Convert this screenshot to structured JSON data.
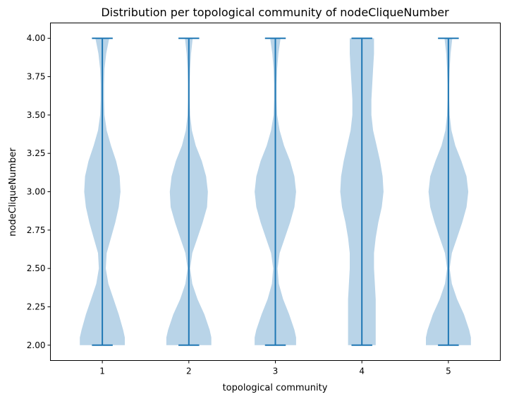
{
  "chart_data": {
    "type": "violin",
    "title": "Distribution per topological community of nodeCliqueNumber",
    "xlabel": "topological community",
    "ylabel": "nodeCliqueNumber",
    "categories": [
      "1",
      "2",
      "3",
      "4",
      "5"
    ],
    "ylim": [
      1.9,
      4.1
    ],
    "yticks": [
      "2.00",
      "2.25",
      "2.50",
      "2.75",
      "3.00",
      "3.25",
      "3.50",
      "3.75",
      "4.00"
    ],
    "grid": false,
    "colors": {
      "body": "#b9d4e8",
      "line": "#1f77b4"
    },
    "violins": [
      {
        "category": "1",
        "min": 2.0,
        "max": 4.0,
        "profile": {
          "y": [
            2.0,
            2.05,
            2.1,
            2.2,
            2.3,
            2.4,
            2.5,
            2.6,
            2.7,
            2.8,
            2.9,
            3.0,
            3.1,
            3.2,
            3.3,
            3.4,
            3.5,
            3.6,
            3.7,
            3.8,
            3.9,
            4.0
          ],
          "halfwidth": [
            0.26,
            0.26,
            0.24,
            0.19,
            0.13,
            0.07,
            0.04,
            0.05,
            0.1,
            0.15,
            0.19,
            0.21,
            0.2,
            0.16,
            0.1,
            0.05,
            0.025,
            0.02,
            0.02,
            0.025,
            0.045,
            0.08
          ]
        }
      },
      {
        "category": "2",
        "min": 2.0,
        "max": 4.0,
        "profile": {
          "y": [
            2.0,
            2.05,
            2.1,
            2.2,
            2.3,
            2.4,
            2.5,
            2.6,
            2.7,
            2.8,
            2.9,
            3.0,
            3.1,
            3.2,
            3.3,
            3.4,
            3.5,
            3.6,
            3.7,
            3.8,
            3.9,
            4.0
          ],
          "halfwidth": [
            0.26,
            0.26,
            0.24,
            0.18,
            0.1,
            0.04,
            0.015,
            0.04,
            0.1,
            0.16,
            0.21,
            0.22,
            0.2,
            0.15,
            0.08,
            0.035,
            0.015,
            0.01,
            0.01,
            0.015,
            0.025,
            0.045
          ]
        }
      },
      {
        "category": "3",
        "min": 2.0,
        "max": 4.0,
        "profile": {
          "y": [
            2.0,
            2.05,
            2.1,
            2.2,
            2.3,
            2.4,
            2.5,
            2.6,
            2.7,
            2.8,
            2.9,
            3.0,
            3.1,
            3.2,
            3.3,
            3.4,
            3.5,
            3.6,
            3.7,
            3.8,
            3.9,
            4.0
          ],
          "halfwidth": [
            0.24,
            0.24,
            0.22,
            0.16,
            0.09,
            0.04,
            0.025,
            0.05,
            0.11,
            0.17,
            0.22,
            0.24,
            0.22,
            0.17,
            0.1,
            0.05,
            0.02,
            0.015,
            0.015,
            0.02,
            0.035,
            0.06
          ]
        }
      },
      {
        "category": "4",
        "min": 2.0,
        "max": 4.0,
        "profile": {
          "y": [
            2.0,
            2.05,
            2.1,
            2.2,
            2.3,
            2.4,
            2.5,
            2.6,
            2.7,
            2.8,
            2.9,
            3.0,
            3.1,
            3.2,
            3.3,
            3.4,
            3.5,
            3.6,
            3.7,
            3.8,
            3.9,
            4.0
          ],
          "halfwidth": [
            0.16,
            0.16,
            0.16,
            0.16,
            0.16,
            0.15,
            0.14,
            0.14,
            0.16,
            0.19,
            0.23,
            0.25,
            0.24,
            0.21,
            0.17,
            0.13,
            0.11,
            0.11,
            0.12,
            0.13,
            0.14,
            0.14
          ]
        }
      },
      {
        "category": "5",
        "min": 2.0,
        "max": 4.0,
        "profile": {
          "y": [
            2.0,
            2.05,
            2.1,
            2.2,
            2.3,
            2.4,
            2.5,
            2.6,
            2.7,
            2.8,
            2.9,
            3.0,
            3.1,
            3.2,
            3.3,
            3.4,
            3.5,
            3.6,
            3.7,
            3.8,
            3.9,
            4.0
          ],
          "halfwidth": [
            0.26,
            0.26,
            0.24,
            0.18,
            0.1,
            0.04,
            0.015,
            0.04,
            0.1,
            0.16,
            0.21,
            0.23,
            0.21,
            0.15,
            0.08,
            0.035,
            0.015,
            0.01,
            0.01,
            0.015,
            0.025,
            0.045
          ]
        }
      }
    ]
  }
}
